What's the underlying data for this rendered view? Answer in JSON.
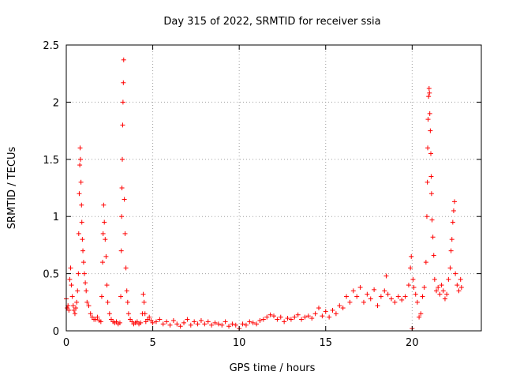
{
  "chart_data": {
    "type": "scatter",
    "title": "Day 315 of 2022, SRMTID for receiver ssia",
    "xlabel": "GPS time / hours",
    "ylabel": "SRMTID / TECUs",
    "xlim": [
      0,
      24
    ],
    "ylim": [
      0,
      2.5
    ],
    "x_ticks": [
      0,
      5,
      10,
      15,
      20
    ],
    "x_tick_labels": [
      "0",
      "5",
      "10",
      "15",
      "20"
    ],
    "y_ticks": [
      0,
      0.5,
      1,
      1.5,
      2,
      2.5
    ],
    "y_tick_labels": [
      "0",
      "0.5",
      "1",
      "1.5",
      "2",
      "2.5"
    ],
    "grid": true,
    "marker": "+",
    "color": "#ff0000",
    "series": [
      {
        "name": "SRMTID",
        "points": [
          [
            0.0,
            0.28
          ],
          [
            0.05,
            0.2
          ],
          [
            0.1,
            0.22
          ],
          [
            0.15,
            0.18
          ],
          [
            0.2,
            0.45
          ],
          [
            0.25,
            0.55
          ],
          [
            0.3,
            0.4
          ],
          [
            0.35,
            0.3
          ],
          [
            0.4,
            0.22
          ],
          [
            0.45,
            0.18
          ],
          [
            0.5,
            0.15
          ],
          [
            0.55,
            0.2
          ],
          [
            0.6,
            0.25
          ],
          [
            0.65,
            0.35
          ],
          [
            0.7,
            0.5
          ],
          [
            0.72,
            0.85
          ],
          [
            0.75,
            1.2
          ],
          [
            0.78,
            1.45
          ],
          [
            0.8,
            1.6
          ],
          [
            0.82,
            1.5
          ],
          [
            0.85,
            1.3
          ],
          [
            0.88,
            1.1
          ],
          [
            0.9,
            0.95
          ],
          [
            0.93,
            0.8
          ],
          [
            0.96,
            0.7
          ],
          [
            1.0,
            0.6
          ],
          [
            1.05,
            0.5
          ],
          [
            1.1,
            0.42
          ],
          [
            1.15,
            0.35
          ],
          [
            1.2,
            0.25
          ],
          [
            1.3,
            0.22
          ],
          [
            1.4,
            0.15
          ],
          [
            1.5,
            0.12
          ],
          [
            1.6,
            0.1
          ],
          [
            1.7,
            0.1
          ],
          [
            1.8,
            0.12
          ],
          [
            1.9,
            0.09
          ],
          [
            2.0,
            0.08
          ],
          [
            2.05,
            0.3
          ],
          [
            2.1,
            0.6
          ],
          [
            2.13,
            0.85
          ],
          [
            2.16,
            1.1
          ],
          [
            2.2,
            0.95
          ],
          [
            2.25,
            0.8
          ],
          [
            2.3,
            0.65
          ],
          [
            2.35,
            0.4
          ],
          [
            2.4,
            0.25
          ],
          [
            2.5,
            0.15
          ],
          [
            2.6,
            0.1
          ],
          [
            2.7,
            0.08
          ],
          [
            2.8,
            0.07
          ],
          [
            2.9,
            0.08
          ],
          [
            3.0,
            0.06
          ],
          [
            3.1,
            0.07
          ],
          [
            3.15,
            0.3
          ],
          [
            3.18,
            0.7
          ],
          [
            3.2,
            1.0
          ],
          [
            3.22,
            1.25
          ],
          [
            3.24,
            1.5
          ],
          [
            3.26,
            1.8
          ],
          [
            3.28,
            2.0
          ],
          [
            3.3,
            2.17
          ],
          [
            3.32,
            2.37
          ],
          [
            3.36,
            1.15
          ],
          [
            3.4,
            0.85
          ],
          [
            3.45,
            0.55
          ],
          [
            3.5,
            0.35
          ],
          [
            3.55,
            0.25
          ],
          [
            3.6,
            0.15
          ],
          [
            3.7,
            0.1
          ],
          [
            3.8,
            0.08
          ],
          [
            3.9,
            0.06
          ],
          [
            4.0,
            0.07
          ],
          [
            4.1,
            0.08
          ],
          [
            4.2,
            0.06
          ],
          [
            4.3,
            0.07
          ],
          [
            4.4,
            0.15
          ],
          [
            4.45,
            0.32
          ],
          [
            4.5,
            0.25
          ],
          [
            4.55,
            0.15
          ],
          [
            4.6,
            0.08
          ],
          [
            4.7,
            0.1
          ],
          [
            4.8,
            0.12
          ],
          [
            4.9,
            0.09
          ],
          [
            5.0,
            0.07
          ],
          [
            5.2,
            0.08
          ],
          [
            5.4,
            0.1
          ],
          [
            5.6,
            0.06
          ],
          [
            5.8,
            0.08
          ],
          [
            6.0,
            0.05
          ],
          [
            6.2,
            0.09
          ],
          [
            6.4,
            0.06
          ],
          [
            6.6,
            0.04
          ],
          [
            6.8,
            0.07
          ],
          [
            7.0,
            0.1
          ],
          [
            7.2,
            0.05
          ],
          [
            7.4,
            0.08
          ],
          [
            7.6,
            0.06
          ],
          [
            7.8,
            0.09
          ],
          [
            8.0,
            0.06
          ],
          [
            8.2,
            0.08
          ],
          [
            8.4,
            0.05
          ],
          [
            8.6,
            0.07
          ],
          [
            8.8,
            0.06
          ],
          [
            9.0,
            0.05
          ],
          [
            9.2,
            0.08
          ],
          [
            9.4,
            0.04
          ],
          [
            9.6,
            0.06
          ],
          [
            9.8,
            0.05
          ],
          [
            10.0,
            0.02
          ],
          [
            10.2,
            0.06
          ],
          [
            10.4,
            0.05
          ],
          [
            10.6,
            0.08
          ],
          [
            10.8,
            0.07
          ],
          [
            11.0,
            0.06
          ],
          [
            11.2,
            0.09
          ],
          [
            11.4,
            0.1
          ],
          [
            11.6,
            0.12
          ],
          [
            11.8,
            0.14
          ],
          [
            12.0,
            0.13
          ],
          [
            12.2,
            0.1
          ],
          [
            12.4,
            0.12
          ],
          [
            12.6,
            0.08
          ],
          [
            12.8,
            0.11
          ],
          [
            13.0,
            0.1
          ],
          [
            13.2,
            0.12
          ],
          [
            13.4,
            0.14
          ],
          [
            13.6,
            0.1
          ],
          [
            13.8,
            0.12
          ],
          [
            14.0,
            0.13
          ],
          [
            14.2,
            0.11
          ],
          [
            14.4,
            0.15
          ],
          [
            14.6,
            0.2
          ],
          [
            14.8,
            0.13
          ],
          [
            15.0,
            0.17
          ],
          [
            15.2,
            0.12
          ],
          [
            15.4,
            0.18
          ],
          [
            15.6,
            0.15
          ],
          [
            15.8,
            0.22
          ],
          [
            16.0,
            0.2
          ],
          [
            16.2,
            0.3
          ],
          [
            16.4,
            0.25
          ],
          [
            16.6,
            0.35
          ],
          [
            16.8,
            0.3
          ],
          [
            17.0,
            0.38
          ],
          [
            17.2,
            0.25
          ],
          [
            17.4,
            0.32
          ],
          [
            17.6,
            0.28
          ],
          [
            17.8,
            0.36
          ],
          [
            18.0,
            0.22
          ],
          [
            18.2,
            0.3
          ],
          [
            18.4,
            0.35
          ],
          [
            18.5,
            0.48
          ],
          [
            18.6,
            0.32
          ],
          [
            18.8,
            0.28
          ],
          [
            19.0,
            0.25
          ],
          [
            19.2,
            0.3
          ],
          [
            19.4,
            0.27
          ],
          [
            19.6,
            0.3
          ],
          [
            19.8,
            0.4
          ],
          [
            19.9,
            0.55
          ],
          [
            19.95,
            0.65
          ],
          [
            20.0,
            0.02
          ],
          [
            20.05,
            0.45
          ],
          [
            20.1,
            0.38
          ],
          [
            20.2,
            0.32
          ],
          [
            20.3,
            0.25
          ],
          [
            20.4,
            0.12
          ],
          [
            20.5,
            0.15
          ],
          [
            20.6,
            0.3
          ],
          [
            20.7,
            0.38
          ],
          [
            20.8,
            0.6
          ],
          [
            20.85,
            1.0
          ],
          [
            20.88,
            1.3
          ],
          [
            20.9,
            1.6
          ],
          [
            20.92,
            1.85
          ],
          [
            20.95,
            2.05
          ],
          [
            20.98,
            2.12
          ],
          [
            21.0,
            2.08
          ],
          [
            21.02,
            1.9
          ],
          [
            21.05,
            1.75
          ],
          [
            21.08,
            1.55
          ],
          [
            21.1,
            1.35
          ],
          [
            21.12,
            1.2
          ],
          [
            21.15,
            0.97
          ],
          [
            21.2,
            0.82
          ],
          [
            21.25,
            0.66
          ],
          [
            21.3,
            0.45
          ],
          [
            21.4,
            0.35
          ],
          [
            21.5,
            0.38
          ],
          [
            21.6,
            0.32
          ],
          [
            21.7,
            0.4
          ],
          [
            21.8,
            0.35
          ],
          [
            21.9,
            0.28
          ],
          [
            22.0,
            0.32
          ],
          [
            22.1,
            0.45
          ],
          [
            22.2,
            0.55
          ],
          [
            22.25,
            0.7
          ],
          [
            22.3,
            0.8
          ],
          [
            22.35,
            0.95
          ],
          [
            22.4,
            1.05
          ],
          [
            22.45,
            1.13
          ],
          [
            22.5,
            0.5
          ],
          [
            22.6,
            0.4
          ],
          [
            22.7,
            0.35
          ],
          [
            22.8,
            0.45
          ],
          [
            22.85,
            0.38
          ]
        ]
      }
    ]
  }
}
